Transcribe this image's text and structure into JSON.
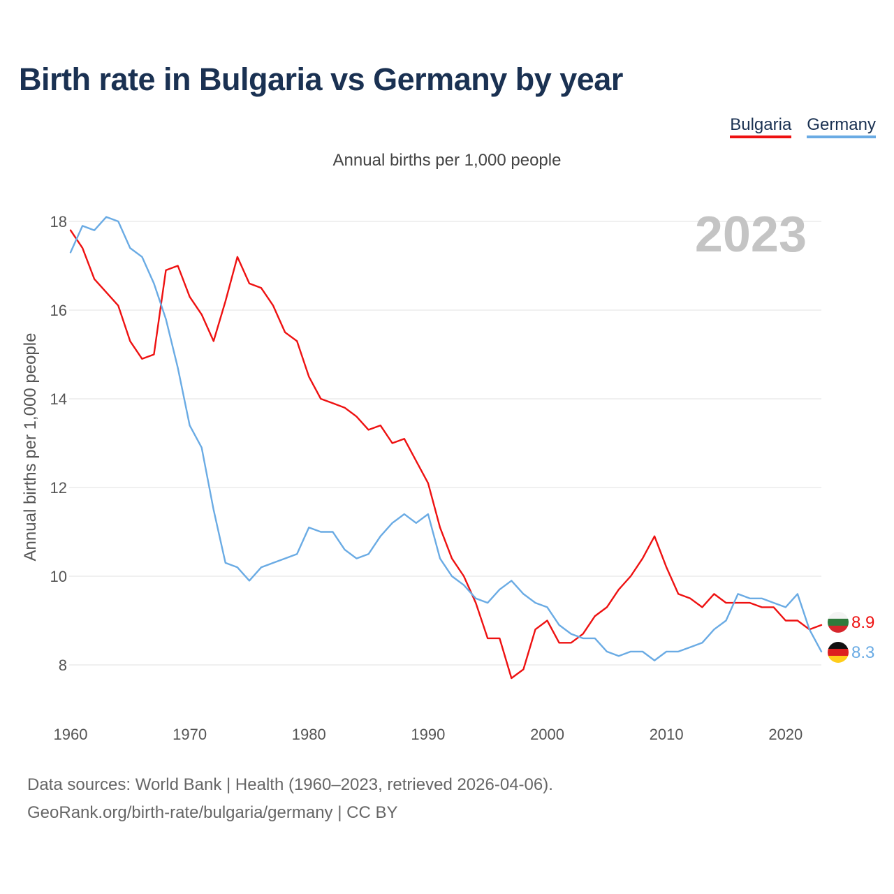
{
  "header": {
    "title": "Birth rate in Bulgaria vs Germany by year"
  },
  "legend": [
    {
      "label": "Bulgaria",
      "color": "#ee1111"
    },
    {
      "label": "Germany",
      "color": "#6aabe4"
    }
  ],
  "footer": {
    "line1": "Data sources: World Bank | Health (1960–2023, retrieved 2026-04-06).",
    "line2": "GeoRank.org/birth-rate/bulgaria/germany | CC BY"
  },
  "chart_data": {
    "type": "line",
    "title": "Birth rate in Bulgaria vs Germany by year",
    "subtitle": "Annual births per 1,000 people",
    "xlabel": "",
    "ylabel": "Annual births per 1,000 people",
    "year_marker": "2023",
    "xlim": [
      1960,
      2023
    ],
    "ylim": [
      7,
      18.5
    ],
    "yticks": [
      8,
      10,
      12,
      14,
      16,
      18
    ],
    "xticks": [
      1960,
      1970,
      1980,
      1990,
      2000,
      2010,
      2020
    ],
    "grid": true,
    "x": [
      1960,
      1961,
      1962,
      1963,
      1964,
      1965,
      1966,
      1967,
      1968,
      1969,
      1970,
      1971,
      1972,
      1973,
      1974,
      1975,
      1976,
      1977,
      1978,
      1979,
      1980,
      1981,
      1982,
      1983,
      1984,
      1985,
      1986,
      1987,
      1988,
      1989,
      1990,
      1991,
      1992,
      1993,
      1994,
      1995,
      1996,
      1997,
      1998,
      1999,
      2000,
      2001,
      2002,
      2003,
      2004,
      2005,
      2006,
      2007,
      2008,
      2009,
      2010,
      2011,
      2012,
      2013,
      2014,
      2015,
      2016,
      2017,
      2018,
      2019,
      2020,
      2021,
      2022,
      2023
    ],
    "series": [
      {
        "name": "Bulgaria",
        "color": "#ee1111",
        "end_label": "8.9",
        "values": [
          17.8,
          17.4,
          16.7,
          16.4,
          16.1,
          15.3,
          14.9,
          15.0,
          16.9,
          17.0,
          16.3,
          15.9,
          15.3,
          16.2,
          17.2,
          16.6,
          16.5,
          16.1,
          15.5,
          15.3,
          14.5,
          14.0,
          13.9,
          13.8,
          13.6,
          13.3,
          13.4,
          13.0,
          13.1,
          12.6,
          12.1,
          11.1,
          10.4,
          10.0,
          9.4,
          8.6,
          8.6,
          7.7,
          7.9,
          8.8,
          9.0,
          8.5,
          8.5,
          8.7,
          9.1,
          9.3,
          9.7,
          10.0,
          10.4,
          10.9,
          10.2,
          9.6,
          9.5,
          9.3,
          9.6,
          9.4,
          9.4,
          9.4,
          9.3,
          9.3,
          9.0,
          9.0,
          8.8,
          8.9
        ]
      },
      {
        "name": "Germany",
        "color": "#6aabe4",
        "end_label": "8.3",
        "values": [
          17.3,
          17.9,
          17.8,
          18.1,
          18.0,
          17.4,
          17.2,
          16.6,
          15.8,
          14.7,
          13.4,
          12.9,
          11.5,
          10.3,
          10.2,
          9.9,
          10.2,
          10.3,
          10.4,
          10.5,
          11.1,
          11.0,
          11.0,
          10.6,
          10.4,
          10.5,
          10.9,
          11.2,
          11.4,
          11.2,
          11.4,
          10.4,
          10.0,
          9.8,
          9.5,
          9.4,
          9.7,
          9.9,
          9.6,
          9.4,
          9.3,
          8.9,
          8.7,
          8.6,
          8.6,
          8.3,
          8.2,
          8.3,
          8.3,
          8.1,
          8.3,
          8.3,
          8.4,
          8.5,
          8.8,
          9.0,
          9.6,
          9.5,
          9.5,
          9.4,
          9.3,
          9.6,
          8.8,
          8.3
        ]
      }
    ]
  }
}
